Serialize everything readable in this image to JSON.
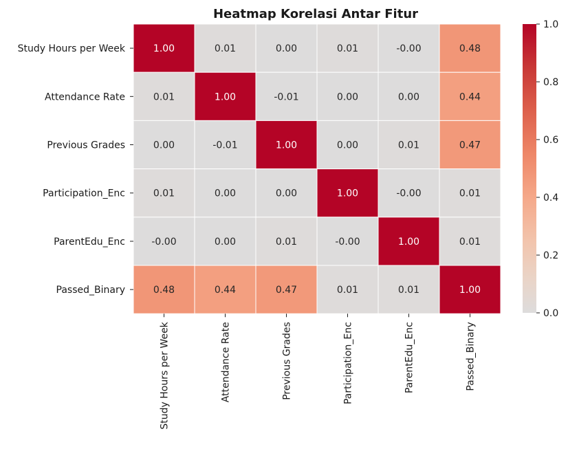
{
  "chart_data": {
    "type": "heatmap",
    "title": "Heatmap Korelasi Antar Fitur",
    "row_labels": [
      "Study Hours per Week",
      "Attendance Rate",
      "Previous Grades",
      "Participation_Enc",
      "ParentEdu_Enc",
      "Passed_Binary"
    ],
    "col_labels": [
      "Study Hours per Week",
      "Attendance Rate",
      "Previous Grades",
      "Participation_Enc",
      "ParentEdu_Enc",
      "Passed_Binary"
    ],
    "values": [
      [
        1.0,
        0.01,
        0.0,
        0.01,
        -0.0,
        0.48
      ],
      [
        0.01,
        1.0,
        -0.01,
        0.0,
        0.0,
        0.44
      ],
      [
        0.0,
        -0.01,
        1.0,
        0.0,
        0.01,
        0.47
      ],
      [
        0.01,
        0.0,
        0.0,
        1.0,
        -0.0,
        0.01
      ],
      [
        -0.0,
        0.0,
        0.01,
        -0.0,
        1.0,
        0.01
      ],
      [
        0.48,
        0.44,
        0.47,
        0.01,
        0.01,
        1.0
      ]
    ],
    "cell_labels": [
      [
        "1.00",
        "0.01",
        "0.00",
        "0.01",
        "-0.00",
        "0.48"
      ],
      [
        "0.01",
        "1.00",
        "-0.01",
        "0.00",
        "0.00",
        "0.44"
      ],
      [
        "0.00",
        "-0.01",
        "1.00",
        "0.00",
        "0.01",
        "0.47"
      ],
      [
        "0.01",
        "0.00",
        "0.00",
        "1.00",
        "-0.00",
        "0.01"
      ],
      [
        "-0.00",
        "0.00",
        "0.01",
        "-0.00",
        "1.00",
        "0.01"
      ],
      [
        "0.48",
        "0.44",
        "0.47",
        "0.01",
        "0.01",
        "1.00"
      ]
    ],
    "colorbar": {
      "range": [
        0.0,
        1.0
      ],
      "ticks": [
        0.0,
        0.2,
        0.4,
        0.6,
        0.8,
        1.0
      ],
      "tick_labels": [
        "0.0",
        "0.2",
        "0.4",
        "0.6",
        "0.8",
        "1.0"
      ],
      "colormap": "coolwarm"
    },
    "colors": {
      "zero": "#dddcdc",
      "max": "#b40426",
      "light_text": "#ffffff",
      "dark_text": "#262626",
      "cell_border": "#ffffff"
    }
  }
}
